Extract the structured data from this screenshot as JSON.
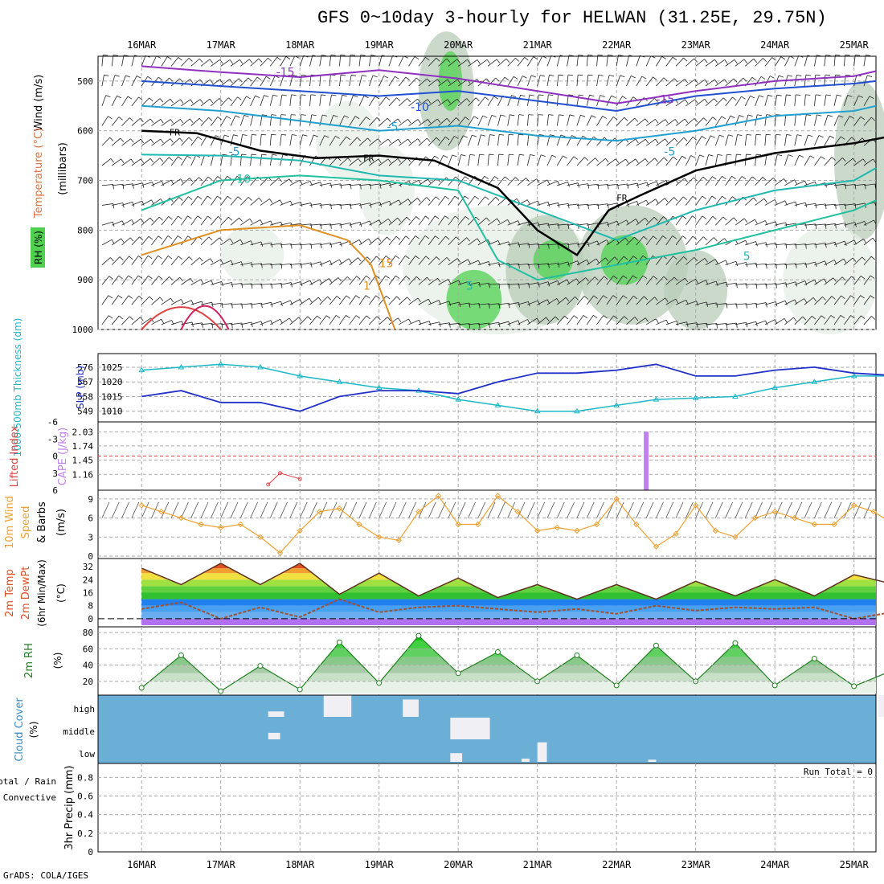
{
  "title": "GFS 0~10day 3-hourly for HELWAN (31.25E, 29.75N)",
  "credit": "GrADS: COLA/IGES",
  "colors": {
    "freezing": "#000000",
    "rh_low": "#e6efe6",
    "rh_mid": "#b8ccb8",
    "rh_high": "#8fa88f",
    "rh_peak": "#4fd14f",
    "thickness": "#1cb8c8",
    "slp": "#2030c8",
    "cape": "#c080f0",
    "lifted": "#e04040",
    "wind_speed": "#f0a030",
    "dewpoint": "#a05030",
    "rh2m": "#208020",
    "cloud_bg": "#6baed6",
    "cloud_fill": "#f0f0f4"
  },
  "chart_data": [
    {
      "panel": "upper_air",
      "type": "heatmap",
      "dates": [
        "16MAR",
        "17MAR",
        "18MAR",
        "19MAR",
        "20MAR",
        "21MAR",
        "22MAR",
        "23MAR",
        "24MAR",
        "25MAR"
      ],
      "ylabel": "(millibars)",
      "ylabel_left": [
        "RH (%)",
        "Temperature (°C)",
        "Wind (m/s)"
      ],
      "yticks": [
        500,
        600,
        700,
        800,
        900,
        1000
      ],
      "ylim": [
        1000,
        450
      ],
      "rh_legend": "RH (%)",
      "temperature_labels": [
        {
          "t": 1.7,
          "p": 490,
          "text": "-15"
        },
        {
          "t": 3.4,
          "p": 560,
          "text": "-10"
        },
        {
          "t": 3.1,
          "p": 600,
          "text": "-5"
        },
        {
          "t": 1.1,
          "p": 650,
          "text": "-5"
        },
        {
          "t": 1.2,
          "p": 705,
          "text": "10"
        },
        {
          "t": 6.5,
          "p": 545,
          "text": "-15"
        },
        {
          "t": 6.6,
          "p": 650,
          "text": "-5"
        },
        {
          "t": 7.6,
          "p": 860,
          "text": "5"
        },
        {
          "t": 4.1,
          "p": 920,
          "text": "5"
        },
        {
          "t": 3.0,
          "p": 875,
          "text": "15"
        },
        {
          "t": 2.8,
          "p": 920,
          "text": "1"
        }
      ],
      "freezing_label": "FR",
      "freezing_level": {
        "t": [
          0,
          0.7,
          1.5,
          2.2,
          3.0,
          3.7,
          4.5,
          5.0,
          5.5,
          5.9,
          6.3,
          7.0,
          8.0,
          9.0,
          9.5
        ],
        "p": [
          600,
          605,
          640,
          655,
          650,
          660,
          715,
          800,
          850,
          760,
          730,
          680,
          645,
          625,
          610
        ]
      },
      "isotherms": [
        {
          "label": "-15",
          "t": [
            0,
            1,
            2,
            3,
            4,
            5,
            6,
            7,
            8,
            9,
            9.5
          ],
          "p": [
            470,
            482,
            492,
            478,
            495,
            520,
            545,
            520,
            500,
            490,
            480
          ]
        },
        {
          "label": "-10",
          "t": [
            0,
            1,
            2,
            3,
            4,
            5,
            6,
            7,
            8,
            9,
            9.5
          ],
          "p": [
            500,
            510,
            520,
            530,
            520,
            540,
            560,
            530,
            515,
            505,
            500
          ]
        },
        {
          "label": "-5",
          "t": [
            0,
            1,
            2,
            3,
            4,
            5,
            6,
            7,
            8,
            9,
            9.5
          ],
          "p": [
            550,
            560,
            580,
            600,
            590,
            610,
            620,
            600,
            570,
            560,
            550
          ]
        },
        {
          "label": "5",
          "t": [
            0,
            1,
            2,
            3,
            4,
            5,
            6,
            7,
            8,
            9,
            9.5
          ],
          "p": [
            648,
            650,
            660,
            690,
            700,
            760,
            820,
            760,
            720,
            700,
            675
          ]
        },
        {
          "label": "10",
          "t": [
            0,
            1,
            2,
            3,
            4,
            4.5,
            5,
            6,
            7,
            8,
            9,
            9.5
          ],
          "p": [
            760,
            700,
            690,
            700,
            720,
            860,
            900,
            870,
            840,
            800,
            760,
            740
          ]
        },
        {
          "label": "15",
          "t": [
            0,
            1,
            2,
            2.6,
            2.9,
            3.2
          ],
          "p": [
            850,
            800,
            790,
            820,
            870,
            1000
          ]
        }
      ]
    },
    {
      "panel": "thickness_slp",
      "type": "line",
      "ylabel_left": "1000-500mb Thickness (dm)",
      "ylabel_right": "SLP (mb)",
      "yticks_left": [
        549,
        558,
        567,
        576
      ],
      "yticks_right": [
        1010,
        1015,
        1020,
        1025
      ],
      "ylim": [
        1008,
        1028
      ],
      "series": [
        {
          "name": "1000-500mb Thickness (dm)",
          "t": [
            0,
            0.5,
            1.0,
            1.5,
            2.0,
            2.5,
            3.0,
            3.5,
            4.0,
            4.5,
            5.0,
            5.5,
            6.0,
            6.5,
            7.0,
            7.5,
            8.0,
            8.5,
            9.0,
            9.6
          ],
          "values": [
            1024,
            1025,
            1026,
            1025,
            1022,
            1020,
            1018,
            1017,
            1014,
            1012,
            1010,
            1010,
            1012,
            1014,
            1014.5,
            1015,
            1018,
            1020,
            1022,
            1022
          ]
        },
        {
          "name": "SLP (mb)",
          "t": [
            0,
            0.5,
            1.0,
            1.5,
            2.0,
            2.5,
            3.0,
            3.5,
            4.0,
            4.5,
            5.0,
            5.5,
            6.0,
            6.5,
            7.0,
            7.5,
            8.0,
            8.5,
            9.0,
            9.6
          ],
          "values": [
            1015,
            1017,
            1013,
            1013,
            1010,
            1015,
            1017,
            1017,
            1016,
            1020,
            1023,
            1023,
            1024,
            1026,
            1022,
            1022,
            1024,
            1025,
            1023,
            1022
          ]
        }
      ]
    },
    {
      "panel": "cape_li",
      "type": "bar",
      "ylabel_left": "Lifted Index",
      "ylabel_right": "CAPE (J/kg)",
      "yticks_left": [
        -6,
        -3,
        0,
        3,
        6
      ],
      "yticks_right": [
        1.16,
        1.45,
        1.74,
        2.03
      ],
      "ylim": [
        1.0,
        2.1
      ],
      "cape": [
        {
          "t": 6.375,
          "value": 2.03
        }
      ],
      "lifted_index": {
        "t": [
          1.6,
          1.75,
          2.0
        ],
        "values": [
          5,
          3,
          4
        ]
      }
    },
    {
      "panel": "wind10m",
      "type": "line",
      "ylabel": "10m Wind Speed (m/s) & Barbs",
      "ylabel_lines": [
        "10m Wind",
        "Speed",
        "& Barbs",
        "(m/s)"
      ],
      "yticks": [
        0,
        3,
        6,
        9
      ],
      "ylim": [
        0,
        10
      ],
      "t": [
        0,
        0.25,
        0.5,
        0.75,
        1.0,
        1.25,
        1.5,
        1.75,
        2.0,
        2.25,
        2.5,
        2.75,
        3.0,
        3.25,
        3.5,
        3.75,
        4.0,
        4.25,
        4.5,
        4.75,
        5.0,
        5.25,
        5.5,
        5.75,
        6.0,
        6.25,
        6.5,
        6.75,
        7.0,
        7.25,
        7.5,
        7.75,
        8.0,
        8.25,
        8.5,
        8.75,
        9.0,
        9.25,
        9.5,
        9.6
      ],
      "values": [
        8,
        7,
        6,
        5,
        4.5,
        5,
        3,
        0.5,
        4,
        7,
        7.5,
        5,
        3,
        2.5,
        7,
        9.5,
        5,
        5,
        9.5,
        7,
        4,
        4.5,
        4,
        5,
        9,
        5,
        1.5,
        3.5,
        8,
        4,
        3,
        6,
        7,
        6,
        5,
        5,
        8,
        7,
        5,
        6
      ]
    },
    {
      "panel": "temp2m",
      "type": "area",
      "ylabel_lines": [
        "2m Temp",
        "2m DewPt",
        "(6hr Min/Max)"
      ],
      "yunit": "(°C)",
      "yticks": [
        0,
        8,
        16,
        24,
        32
      ],
      "ylim": [
        -4,
        36
      ],
      "t": [
        0,
        0.5,
        1.0,
        1.5,
        2.0,
        2.5,
        3.0,
        3.5,
        4.0,
        4.5,
        5.0,
        5.5,
        6.0,
        6.5,
        7.0,
        7.5,
        8.0,
        8.5,
        9.0,
        9.6
      ],
      "temp": [
        31,
        21,
        34,
        21,
        34,
        15,
        28,
        14,
        25,
        13,
        21,
        12,
        21,
        12,
        23,
        14,
        24,
        14,
        27,
        20
      ],
      "dewpoint": [
        6,
        10,
        0,
        7,
        1,
        12,
        4,
        7,
        8,
        6,
        4,
        6,
        3,
        8,
        5,
        7,
        6,
        7,
        0,
        5
      ]
    },
    {
      "panel": "rh2m",
      "type": "area",
      "ylabel": "2m RH",
      "yunit": "(%)",
      "yticks": [
        20,
        40,
        60,
        80
      ],
      "ylim": [
        5,
        85
      ],
      "t": [
        0,
        0.5,
        1.0,
        1.5,
        2.0,
        2.5,
        3.0,
        3.5,
        4.0,
        4.5,
        5.0,
        5.5,
        6.0,
        6.5,
        7.0,
        7.5,
        8.0,
        8.5,
        9.0,
        9.6
      ],
      "values": [
        12,
        52,
        8,
        39,
        10,
        68,
        18,
        76,
        30,
        56,
        20,
        52,
        15,
        64,
        20,
        67,
        15,
        48,
        14,
        38
      ]
    },
    {
      "panel": "cloud",
      "type": "bar",
      "ylabel": "Cloud Cover",
      "yunit": "(%)",
      "levels": [
        "high",
        "middle",
        "low"
      ],
      "high": [
        {
          "t": 1.6,
          "w": 0.2,
          "v": 0.25
        },
        {
          "t": 2.3,
          "w": 0.35,
          "v": 1.0
        },
        {
          "t": 3.3,
          "w": 0.2,
          "v": 0.8
        },
        {
          "t": 9.3,
          "w": 0.1,
          "v": 1.0
        }
      ],
      "middle": [
        {
          "t": 1.6,
          "w": 0.15,
          "v": 0.3
        },
        {
          "t": 3.9,
          "w": 0.5,
          "v": 1.0
        }
      ],
      "low": [
        {
          "t": 3.9,
          "w": 0.15,
          "v": 0.4
        },
        {
          "t": 5.0,
          "w": 0.12,
          "v": 0.9
        },
        {
          "t": 4.8,
          "w": 0.1,
          "v": 0.15
        },
        {
          "t": 6.4,
          "w": 0.1,
          "v": 0.1
        }
      ]
    },
    {
      "panel": "precip",
      "type": "bar",
      "ylabel": "3hr Precip (mm)",
      "ylabel_left": [
        "Total / Rain",
        "Convective"
      ],
      "yticks": [
        0,
        0.2,
        0.4,
        0.6,
        0.8
      ],
      "ylim": [
        0,
        0.95
      ],
      "run_total": "Run Total = 0",
      "values": []
    }
  ]
}
